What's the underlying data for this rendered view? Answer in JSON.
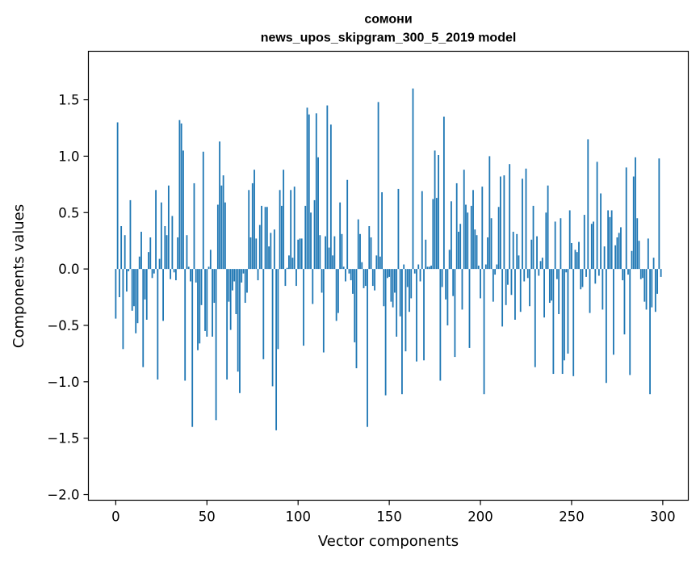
{
  "chart_data": {
    "type": "bar",
    "title_line1": "сомони",
    "title_line2": "news_upos_skipgram_300_5_2019 model",
    "xlabel": "Vector components",
    "ylabel": "Components values",
    "xlim": [
      -15,
      314
    ],
    "ylim": [
      -2.05,
      1.93
    ],
    "xticks": [
      0,
      50,
      100,
      150,
      200,
      250,
      300
    ],
    "xtick_labels": [
      "0",
      "50",
      "100",
      "150",
      "200",
      "250",
      "300"
    ],
    "yticks": [
      -2.0,
      -1.5,
      -1.0,
      -0.5,
      0.0,
      0.5,
      1.0,
      1.5
    ],
    "ytick_labels": [
      "−2.0",
      "−1.5",
      "−1.0",
      "−0.5",
      "0.0",
      "0.5",
      "1.0",
      "1.5"
    ],
    "bar_color": "#1f77b4",
    "values": [
      -0.44,
      1.3,
      -0.25,
      0.38,
      -0.71,
      0.3,
      -0.2,
      -0.02,
      0.61,
      -0.37,
      -0.33,
      -0.57,
      -0.48,
      0.11,
      0.33,
      -0.87,
      -0.27,
      -0.45,
      0.15,
      0.28,
      -0.08,
      -0.04,
      0.7,
      -0.98,
      0.09,
      0.59,
      -0.46,
      0.38,
      0.3,
      0.74,
      -0.09,
      0.47,
      -0.03,
      -0.1,
      0.28,
      1.32,
      1.29,
      1.05,
      -0.99,
      0.3,
      0.02,
      -0.11,
      -1.4,
      0.76,
      -0.12,
      -0.72,
      -0.66,
      -0.32,
      1.04,
      -0.55,
      -0.6,
      0.02,
      0.17,
      -0.6,
      -0.3,
      -1.34,
      0.57,
      1.13,
      0.74,
      0.83,
      0.59,
      -0.98,
      -0.29,
      -0.54,
      -0.19,
      -0.11,
      -0.4,
      -0.91,
      -1.1,
      -0.12,
      -0.04,
      -0.3,
      -0.21,
      0.7,
      0.28,
      0.76,
      0.88,
      0.27,
      -0.1,
      0.39,
      0.56,
      -0.8,
      0.55,
      0.55,
      0.2,
      0.32,
      -1.04,
      0.35,
      -1.43,
      -0.71,
      0.7,
      0.56,
      0.88,
      -0.15,
      0.01,
      0.12,
      0.7,
      0.1,
      0.73,
      -0.15,
      0.26,
      0.27,
      0.27,
      -0.68,
      0.56,
      1.43,
      1.37,
      0.5,
      -0.31,
      0.61,
      1.38,
      0.99,
      0.3,
      -0.21,
      -0.74,
      0.29,
      1.45,
      0.19,
      1.28,
      0.12,
      0.29,
      -0.46,
      -0.39,
      0.59,
      0.31,
      0.02,
      -0.11,
      0.79,
      -0.04,
      -0.1,
      -0.22,
      -0.65,
      -0.88,
      0.44,
      0.31,
      0.06,
      -0.17,
      -0.15,
      -1.4,
      0.38,
      0.28,
      -0.15,
      -0.19,
      0.12,
      1.48,
      0.11,
      0.68,
      -0.33,
      -1.12,
      -0.08,
      -0.07,
      -0.29,
      -0.34,
      -0.21,
      -0.6,
      0.71,
      -0.42,
      -1.11,
      0.04,
      -0.73,
      -0.16,
      -0.38,
      -0.26,
      1.6,
      -0.04,
      -0.82,
      0.04,
      -0.11,
      0.69,
      -0.81,
      0.26,
      0.02,
      0.02,
      0.03,
      0.62,
      1.05,
      0.63,
      1.01,
      -0.99,
      -0.16,
      1.35,
      -0.27,
      -0.5,
      0.17,
      0.6,
      -0.24,
      -0.78,
      0.76,
      0.33,
      0.4,
      -0.36,
      0.88,
      0.57,
      0.5,
      -0.7,
      0.56,
      0.7,
      0.35,
      0.3,
      0.03,
      -0.26,
      0.73,
      -1.11,
      0.04,
      0.28,
      1.0,
      0.45,
      -0.29,
      -0.05,
      0.04,
      0.55,
      0.82,
      -0.51,
      0.83,
      -0.32,
      -0.14,
      0.93,
      -0.23,
      0.33,
      -0.45,
      0.31,
      0.12,
      -0.38,
      0.8,
      -0.11,
      0.89,
      -0.08,
      -0.33,
      0.26,
      0.56,
      -0.87,
      0.29,
      -0.06,
      0.07,
      0.1,
      -0.43,
      0.5,
      0.74,
      -0.3,
      -0.28,
      -0.93,
      0.42,
      -0.09,
      -0.4,
      0.45,
      -0.93,
      -0.81,
      -0.03,
      -0.75,
      0.52,
      0.23,
      -0.95,
      0.17,
      0.15,
      0.24,
      -0.18,
      -0.16,
      0.48,
      -0.07,
      1.15,
      -0.39,
      0.4,
      0.42,
      -0.13,
      0.95,
      -0.06,
      0.67,
      -0.36,
      0.2,
      -1.01,
      0.52,
      0.46,
      0.52,
      -0.76,
      0.21,
      0.28,
      0.32,
      0.37,
      -0.1,
      -0.58,
      0.9,
      -0.05,
      -0.94,
      0.16,
      0.82,
      0.99,
      0.45,
      0.25,
      -0.09,
      -0.08,
      -0.29,
      -0.36,
      0.27,
      -1.11,
      -0.34,
      0.1,
      -0.38,
      -0.22,
      0.98,
      -0.07
    ]
  }
}
